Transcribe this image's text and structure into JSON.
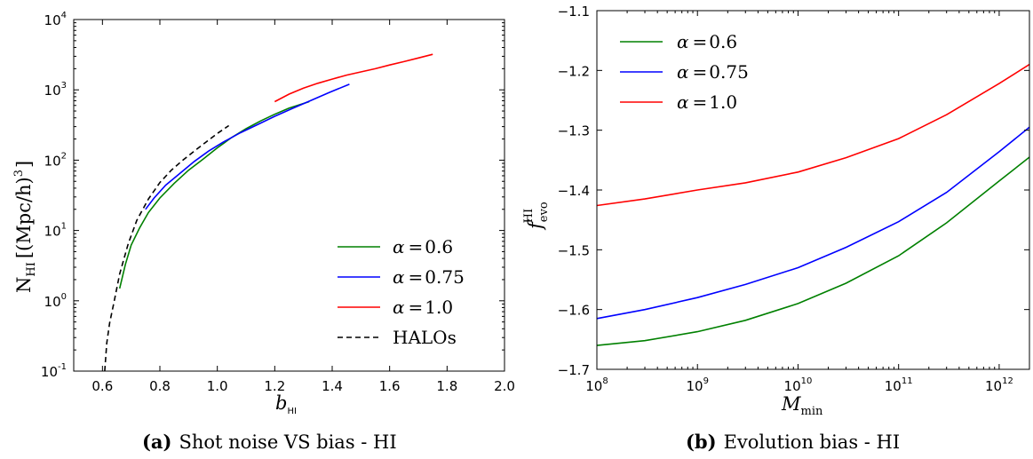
{
  "chart_data": [
    {
      "type": "line",
      "caption_label": "(a)",
      "caption_text": "Shot noise VS bias - HI",
      "xlabel": "b",
      "xlabel_sub": "HI",
      "ylabel": "N",
      "ylabel_sub": "HI",
      "ylabel_unit": "[(Mpc/h)",
      "ylabel_unit_exp": "3",
      "ylabel_unit_close": "]",
      "xlim": [
        0.5,
        2.0
      ],
      "ylim": [
        0.1,
        10000
      ],
      "yscale": "log",
      "xticks": [
        "0.6",
        "0.8",
        "1.0",
        "1.2",
        "1.4",
        "1.6",
        "1.8",
        "2.0"
      ],
      "yticks": [
        {
          "base": "10",
          "exp": "-1",
          "value": 0.1
        },
        {
          "base": "10",
          "exp": "0",
          "value": 1
        },
        {
          "base": "10",
          "exp": "1",
          "value": 10
        },
        {
          "base": "10",
          "exp": "2",
          "value": 100
        },
        {
          "base": "10",
          "exp": "3",
          "value": 1000
        },
        {
          "base": "10",
          "exp": "4",
          "value": 10000
        }
      ],
      "legend_position": "lower-right",
      "grid": false,
      "series": [
        {
          "name": "α = 0.6",
          "symbol": "α",
          "eq": "=",
          "val": "0.6",
          "color": "#008000",
          "dash": "solid",
          "x": [
            0.66,
            0.68,
            0.7,
            0.73,
            0.76,
            0.8,
            0.85,
            0.9,
            0.95,
            1.0,
            1.05,
            1.1,
            1.15,
            1.2,
            1.25,
            1.32
          ],
          "y": [
            1.5,
            3.3,
            6.2,
            11,
            18,
            29,
            47,
            72,
            103,
            150,
            210,
            280,
            360,
            450,
            550,
            680
          ]
        },
        {
          "name": "α = 0.75",
          "symbol": "α",
          "eq": "=",
          "val": "0.75",
          "color": "#0000ff",
          "dash": "solid",
          "x": [
            0.75,
            0.78,
            0.82,
            0.87,
            0.92,
            0.97,
            1.02,
            1.08,
            1.14,
            1.2,
            1.26,
            1.32,
            1.39,
            1.46
          ],
          "y": [
            20,
            29,
            44,
            65,
            96,
            135,
            180,
            245,
            320,
            420,
            540,
            690,
            920,
            1200
          ]
        },
        {
          "name": "α = 1.0",
          "symbol": "α",
          "eq": "=",
          "val": "1.0",
          "color": "#ff0000",
          "dash": "solid",
          "x": [
            1.2,
            1.25,
            1.3,
            1.35,
            1.4,
            1.45,
            1.5,
            1.55,
            1.6,
            1.65,
            1.7,
            1.75
          ],
          "y": [
            680,
            870,
            1060,
            1240,
            1420,
            1620,
            1800,
            2000,
            2260,
            2520,
            2840,
            3200
          ]
        },
        {
          "name": "HALOs",
          "symbol": "",
          "eq": "",
          "val": "HALOs",
          "color": "#000000",
          "dash": "dashed",
          "x": [
            0.608,
            0.615,
            0.625,
            0.64,
            0.66,
            0.69,
            0.72,
            0.76,
            0.8,
            0.84,
            0.88,
            0.92,
            0.96,
            1.0,
            1.04
          ],
          "y": [
            0.1,
            0.25,
            0.48,
            0.95,
            2.4,
            6.5,
            14,
            28,
            48,
            72,
            100,
            135,
            180,
            240,
            310
          ]
        }
      ]
    },
    {
      "type": "line",
      "caption_label": "(b)",
      "caption_text": "Evolution bias - HI",
      "xlabel": "M",
      "xlabel_sub": "min",
      "ylabel": "f",
      "ylabel_sub": "evo",
      "ylabel_sup": "HI",
      "xlim": [
        100000000.0,
        2000000000000.0
      ],
      "ylim": [
        -1.7,
        -1.1
      ],
      "xscale": "log",
      "xticks": [
        {
          "base": "10",
          "exp": "8",
          "value": 100000000.0
        },
        {
          "base": "10",
          "exp": "9",
          "value": 1000000000.0
        },
        {
          "base": "10",
          "exp": "10",
          "value": 10000000000.0
        },
        {
          "base": "10",
          "exp": "11",
          "value": 100000000000.0
        },
        {
          "base": "10",
          "exp": "12",
          "value": 1000000000000.0
        }
      ],
      "yticks": [
        "−1.7",
        "−1.6",
        "−1.5",
        "−1.4",
        "−1.3",
        "−1.2",
        "−1.1"
      ],
      "ytick_values": [
        -1.7,
        -1.6,
        -1.5,
        -1.4,
        -1.3,
        -1.2,
        -1.1
      ],
      "legend_position": "upper-left",
      "grid": false,
      "series": [
        {
          "name": "α = 0.6",
          "symbol": "α",
          "eq": "=",
          "val": "0.6",
          "color": "#008000",
          "dash": "solid",
          "x": [
            100000000.0,
            300000000.0,
            1000000000.0,
            3000000000.0,
            10000000000.0,
            30000000000.0,
            100000000000.0,
            300000000000.0,
            1000000000000.0,
            2000000000000.0
          ],
          "y": [
            -1.66,
            -1.652,
            -1.637,
            -1.618,
            -1.59,
            -1.556,
            -1.51,
            -1.455,
            -1.385,
            -1.345
          ]
        },
        {
          "name": "α = 0.75",
          "symbol": "α",
          "eq": "=",
          "val": "0.75",
          "color": "#0000ff",
          "dash": "solid",
          "x": [
            100000000.0,
            300000000.0,
            1000000000.0,
            3000000000.0,
            10000000000.0,
            30000000000.0,
            100000000000.0,
            300000000000.0,
            1000000000000.0,
            2000000000000.0
          ],
          "y": [
            -1.615,
            -1.6,
            -1.58,
            -1.558,
            -1.53,
            -1.496,
            -1.453,
            -1.404,
            -1.336,
            -1.295
          ]
        },
        {
          "name": "α = 1.0",
          "symbol": "α",
          "eq": "=",
          "val": "1.0",
          "color": "#ff0000",
          "dash": "solid",
          "x": [
            100000000.0,
            300000000.0,
            1000000000.0,
            3000000000.0,
            10000000000.0,
            30000000000.0,
            100000000000.0,
            300000000000.0,
            1000000000000.0,
            2000000000000.0
          ],
          "y": [
            -1.426,
            -1.415,
            -1.4,
            -1.388,
            -1.37,
            -1.346,
            -1.314,
            -1.274,
            -1.222,
            -1.19
          ]
        }
      ]
    }
  ]
}
